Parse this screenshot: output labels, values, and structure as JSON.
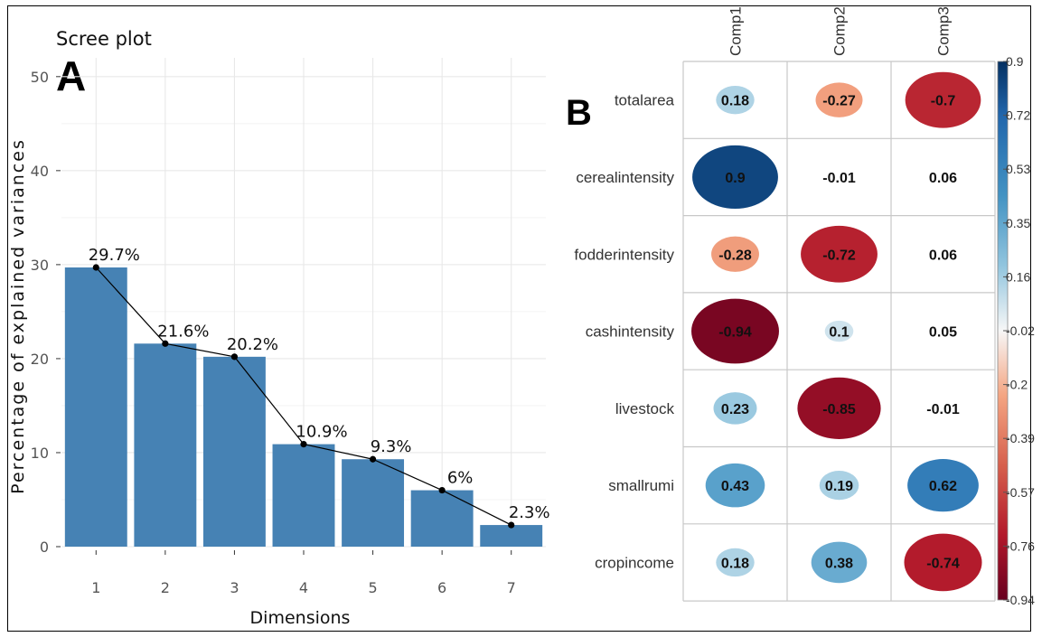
{
  "chart_data": [
    {
      "type": "bar",
      "panel_letter": "A",
      "title": "Scree plot",
      "xlabel": "Dimensions",
      "ylabel": "Percentage of explained variances",
      "categories": [
        "1",
        "2",
        "3",
        "4",
        "5",
        "6",
        "7"
      ],
      "values": [
        29.7,
        21.6,
        20.2,
        10.9,
        9.3,
        6,
        2.3
      ],
      "labels": [
        "29.7%",
        "21.6%",
        "20.2%",
        "10.9%",
        "9.3%",
        "6%",
        "2.3%"
      ],
      "ylim": [
        0,
        52
      ],
      "yticks": [
        0,
        10,
        20,
        30,
        40,
        50
      ],
      "line_overlay": true,
      "grid": true,
      "colors": {
        "bar": "#4682b4",
        "line": "#000000",
        "grid": "#e8e8e8"
      }
    },
    {
      "type": "heatmap",
      "panel_letter": "B",
      "rows": [
        "totalarea",
        "cerealintensity",
        "fodderintensity",
        "cashintensity",
        "livestock",
        "smallrumi",
        "cropincome"
      ],
      "columns": [
        "Comp1",
        "Comp2",
        "Comp3"
      ],
      "values": [
        [
          0.18,
          -0.27,
          -0.7
        ],
        [
          0.9,
          -0.01,
          0.06
        ],
        [
          -0.28,
          -0.72,
          0.06
        ],
        [
          -0.94,
          0.1,
          0.05
        ],
        [
          0.23,
          -0.85,
          -0.01
        ],
        [
          0.43,
          0.19,
          0.62
        ],
        [
          0.18,
          0.38,
          -0.74
        ]
      ],
      "colorbar_ticks": [
        "0.9",
        "0.72",
        "0.53",
        "0.35",
        "0.16",
        "-0.02",
        "-0.2",
        "-0.39",
        "-0.57",
        "-0.76",
        "-0.94"
      ],
      "colorbar_range": [
        -0.94,
        0.9
      ],
      "colors": {
        "max": "#053061",
        "mid": "#f7f7f7",
        "min": "#67001f"
      }
    }
  ]
}
